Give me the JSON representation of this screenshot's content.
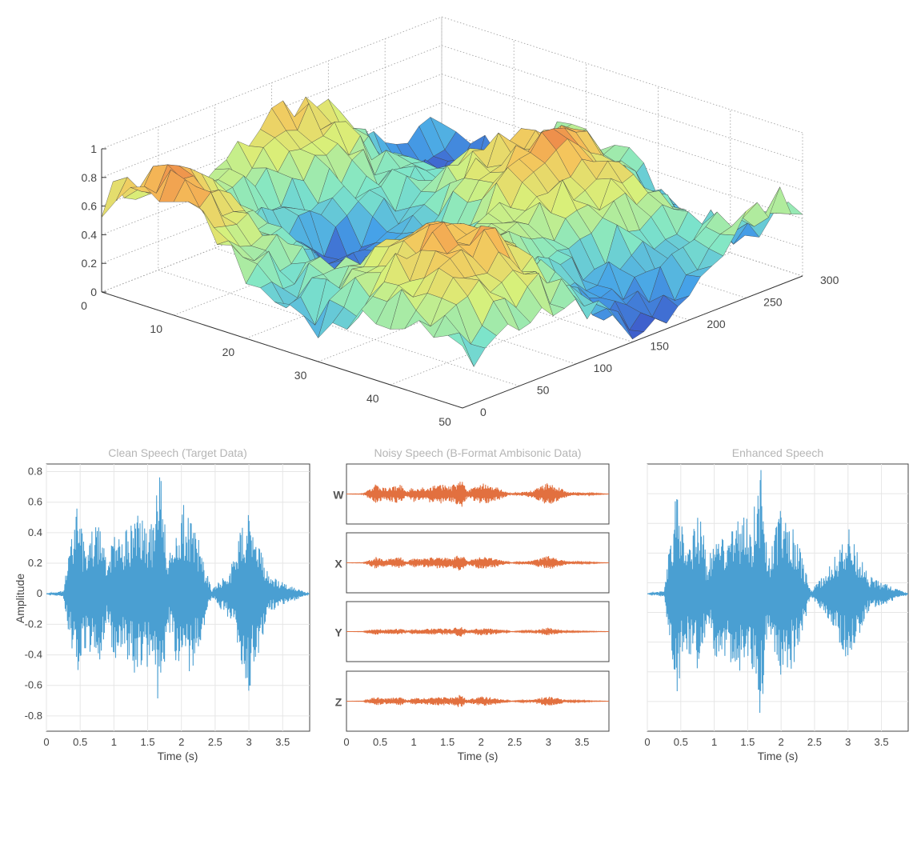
{
  "chart_data": [
    {
      "type": "surface",
      "z_ticks": [
        "0",
        "0.2",
        "0.4",
        "0.6",
        "0.8",
        "1"
      ],
      "x_ticks": [
        "0",
        "10",
        "20",
        "30",
        "40",
        "50"
      ],
      "y_ticks": [
        "0",
        "50",
        "100",
        "150",
        "200",
        "250",
        "300"
      ],
      "zlim": [
        0,
        1
      ],
      "xlim": [
        0,
        50
      ],
      "ylim": [
        0,
        300
      ],
      "grid": true,
      "colormap": [
        "#3b3fbf",
        "#46a3e8",
        "#7fe6c9",
        "#d8f07a",
        "#f6c35a",
        "#e4513a"
      ]
    },
    {
      "type": "line",
      "title": "Clean Speech (Target Data)",
      "xlabel": "Time (s)",
      "ylabel": "Amplitude",
      "x_ticks": [
        "0",
        "0.5",
        "1",
        "1.5",
        "2",
        "2.5",
        "3",
        "3.5"
      ],
      "y_ticks": [
        "-0.8",
        "-0.6",
        "-0.4",
        "-0.2",
        "0",
        "0.2",
        "0.4",
        "0.6",
        "0.8"
      ],
      "xlim": [
        0,
        3.9
      ],
      "ylim": [
        -0.9,
        0.85
      ],
      "color": "#4a9fd2",
      "envelope": [
        {
          "x": 0.0,
          "y": 0.0
        },
        {
          "x": 0.25,
          "y": 0.02
        },
        {
          "x": 0.45,
          "y": 0.6
        },
        {
          "x": 0.55,
          "y": 0.35
        },
        {
          "x": 0.7,
          "y": 0.45
        },
        {
          "x": 0.8,
          "y": 0.55
        },
        {
          "x": 0.9,
          "y": 0.15
        },
        {
          "x": 1.0,
          "y": 0.45
        },
        {
          "x": 1.1,
          "y": 0.35
        },
        {
          "x": 1.25,
          "y": 0.5
        },
        {
          "x": 1.4,
          "y": 0.55
        },
        {
          "x": 1.55,
          "y": 0.45
        },
        {
          "x": 1.7,
          "y": 0.85
        },
        {
          "x": 1.8,
          "y": 0.2
        },
        {
          "x": 2.0,
          "y": 0.62
        },
        {
          "x": 2.2,
          "y": 0.45
        },
        {
          "x": 2.45,
          "y": 0.02
        },
        {
          "x": 2.75,
          "y": 0.2
        },
        {
          "x": 3.0,
          "y": 0.65
        },
        {
          "x": 3.3,
          "y": 0.12
        },
        {
          "x": 3.9,
          "y": 0.0
        }
      ]
    },
    {
      "type": "line",
      "title": "Noisy Speech (B-Format Ambisonic Data)",
      "xlabel": "Time (s)",
      "x_ticks": [
        "0",
        "0.5",
        "1",
        "1.5",
        "2",
        "2.5",
        "3",
        "3.5"
      ],
      "xlim": [
        0,
        3.9
      ],
      "color": "#e2703f",
      "channels": [
        {
          "name": "W",
          "gain": 1.0
        },
        {
          "name": "X",
          "gain": 0.6
        },
        {
          "name": "Y",
          "gain": 0.35
        },
        {
          "name": "Z",
          "gain": 0.45
        }
      ]
    },
    {
      "type": "line",
      "title": "Enhanced Speech",
      "xlabel": "Time (s)",
      "x_ticks": [
        "0",
        "0.5",
        "1",
        "1.5",
        "2",
        "2.5",
        "3",
        "3.5"
      ],
      "xlim": [
        0,
        3.9
      ],
      "ylim": [
        -0.9,
        0.85
      ],
      "color": "#4a9fd2",
      "envelope": [
        {
          "x": 0.0,
          "y": 0.0
        },
        {
          "x": 0.25,
          "y": 0.02
        },
        {
          "x": 0.45,
          "y": 0.75
        },
        {
          "x": 0.55,
          "y": 0.35
        },
        {
          "x": 0.7,
          "y": 0.45
        },
        {
          "x": 0.8,
          "y": 0.55
        },
        {
          "x": 0.9,
          "y": 0.15
        },
        {
          "x": 1.0,
          "y": 0.45
        },
        {
          "x": 1.1,
          "y": 0.35
        },
        {
          "x": 1.25,
          "y": 0.5
        },
        {
          "x": 1.4,
          "y": 0.55
        },
        {
          "x": 1.55,
          "y": 0.45
        },
        {
          "x": 1.7,
          "y": 0.85
        },
        {
          "x": 1.8,
          "y": 0.2
        },
        {
          "x": 2.0,
          "y": 0.62
        },
        {
          "x": 2.2,
          "y": 0.45
        },
        {
          "x": 2.45,
          "y": 0.02
        },
        {
          "x": 2.75,
          "y": 0.2
        },
        {
          "x": 3.0,
          "y": 0.45
        },
        {
          "x": 3.3,
          "y": 0.12
        },
        {
          "x": 3.9,
          "y": 0.0
        }
      ]
    }
  ]
}
